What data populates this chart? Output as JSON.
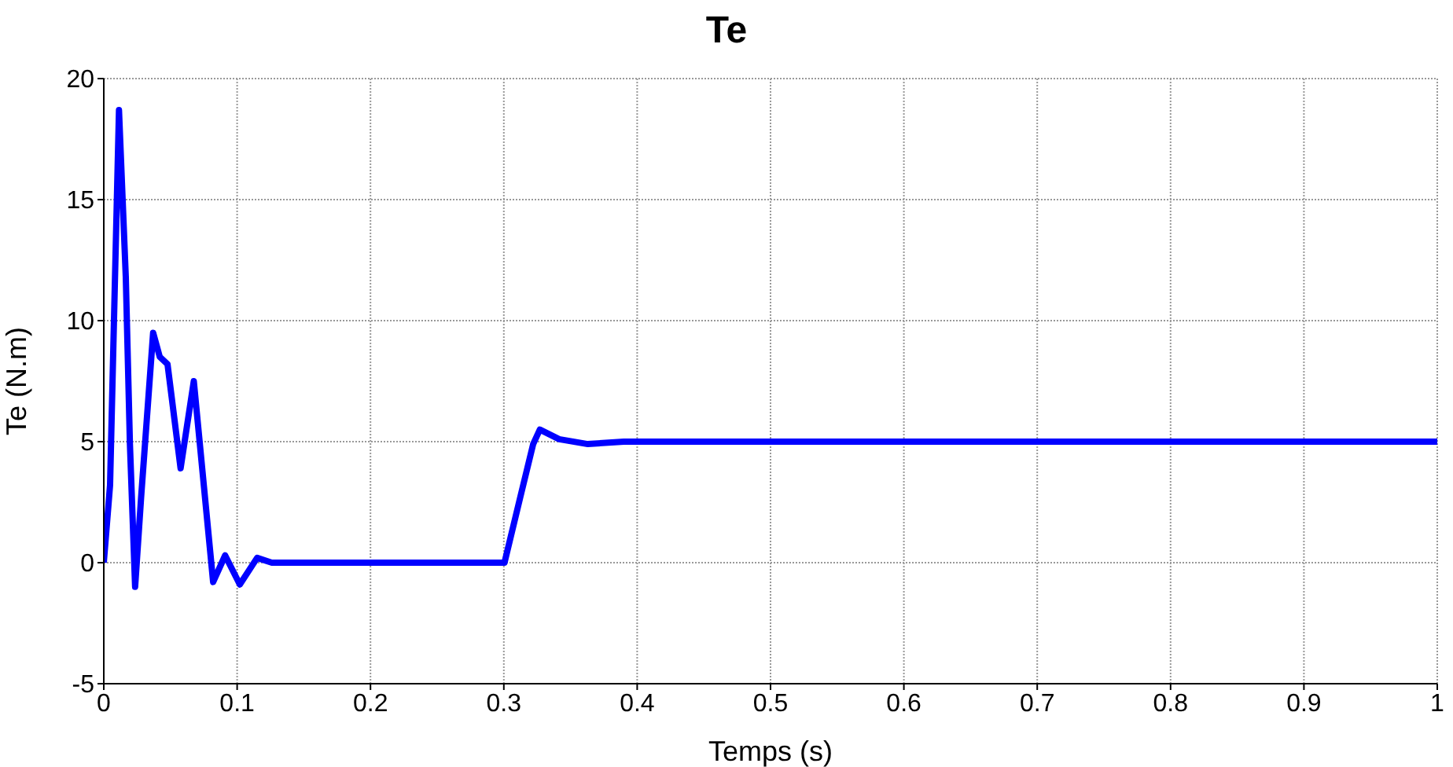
{
  "chart_data": {
    "type": "line",
    "title": "Te",
    "xlabel": "Temps (s)",
    "ylabel": "Te (N.m)",
    "xlim": [
      0,
      1
    ],
    "xticks": [
      0,
      0.1,
      0.2,
      0.3,
      0.4,
      0.5,
      0.6,
      0.7,
      0.8,
      0.9,
      1
    ],
    "ylim": [
      -5,
      20
    ],
    "yticks": [
      -5,
      0,
      5,
      10,
      15,
      20
    ],
    "grid": true,
    "marker": "none",
    "line_style": "solid",
    "series": [
      {
        "color": "#0000ff",
        "x": [
          0,
          0.0047,
          0.0114,
          0.0165,
          0.0196,
          0.0235,
          0.028,
          0.037,
          0.042,
          0.0478,
          0.0576,
          0.0675,
          0.082,
          0.091,
          0.102,
          0.115,
          0.126,
          0.146,
          0.2,
          0.25,
          0.3005,
          0.3123,
          0.322,
          0.327,
          0.3415,
          0.363,
          0.39,
          0.5,
          0.6,
          0.7,
          0.8,
          0.9,
          1
        ],
        "values": [
          0,
          3.2,
          18.7,
          11.8,
          4.9,
          -1,
          2.7,
          9.5,
          8.5,
          8.2,
          3.9,
          7.5,
          -0.8,
          0.3,
          -0.9,
          0.2,
          0,
          0,
          0,
          0,
          0,
          2.7,
          4.9,
          5.5,
          5.1,
          4.9,
          5,
          5,
          5,
          5,
          5,
          5,
          5
        ]
      }
    ]
  }
}
